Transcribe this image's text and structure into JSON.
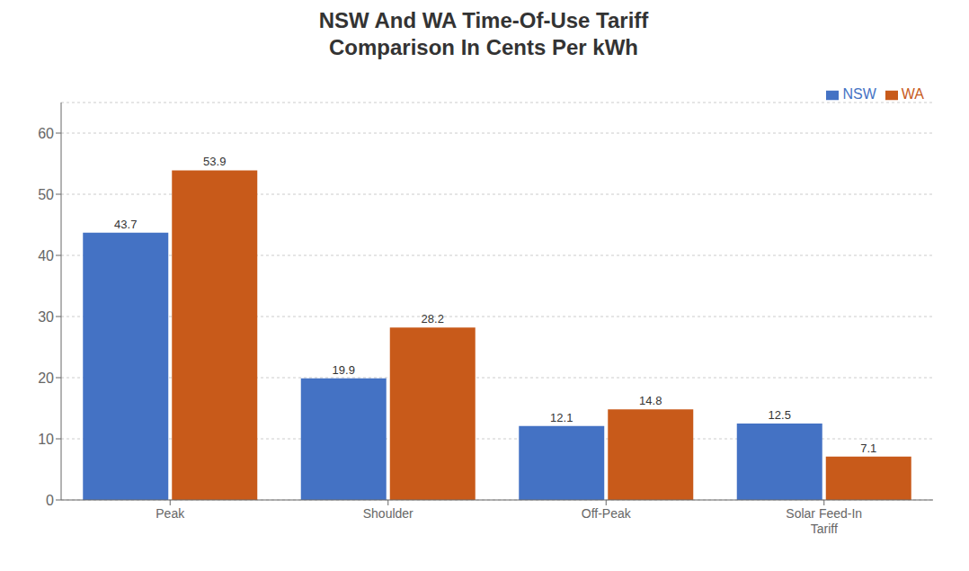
{
  "chart_data": {
    "type": "bar",
    "title": "NSW And WA Time-Of-Use Tariff\nComparison In Cents Per kWh",
    "categories": [
      "Peak",
      "Shoulder",
      "Off-Peak",
      "Solar Feed-In\nTariff"
    ],
    "series": [
      {
        "name": "NSW",
        "color": "#4472C4",
        "values": [
          43.7,
          19.9,
          12.1,
          12.5
        ]
      },
      {
        "name": "WA",
        "color": "#C85A1A",
        "values": [
          53.9,
          28.2,
          14.8,
          7.1
        ]
      }
    ],
    "ylim": [
      0,
      65
    ],
    "yticks": [
      0,
      10,
      20,
      30,
      40,
      50,
      60
    ],
    "grid": true,
    "legend": "upper right",
    "data_labels": true
  }
}
